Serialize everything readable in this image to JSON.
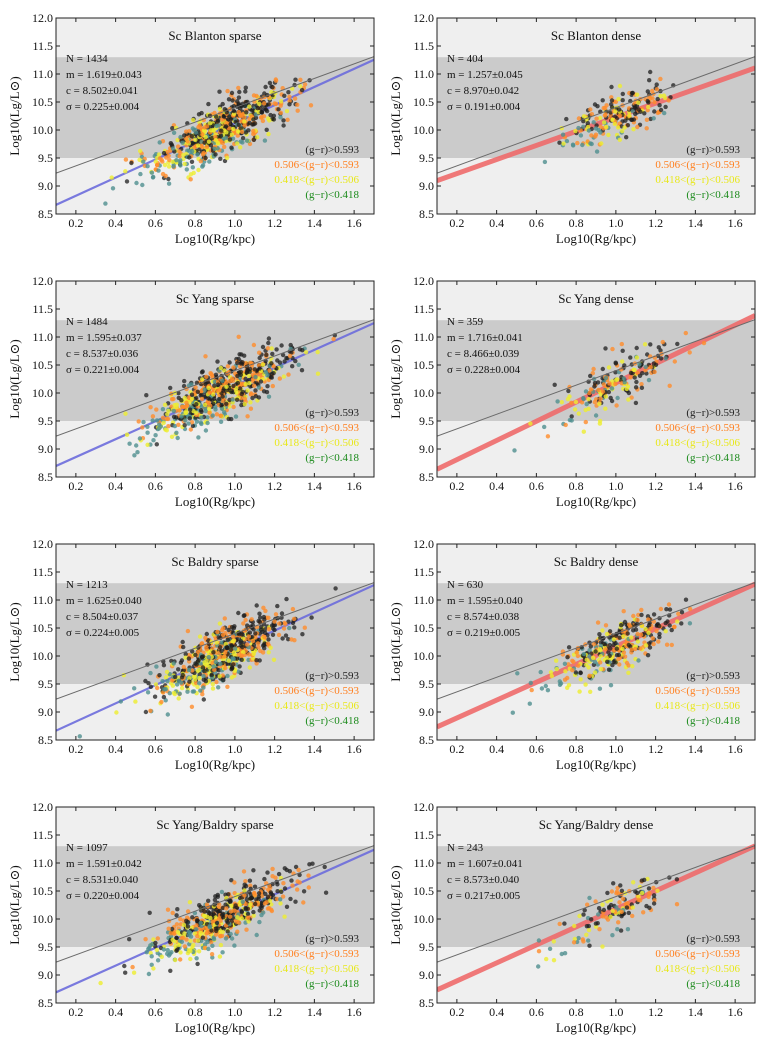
{
  "figure": {
    "xlabel": "Log10(Rg/kpc)",
    "ylabel": "Log10(Lg/L⊙)",
    "xlim": [
      0.1,
      1.7
    ],
    "ylim": [
      8.5,
      12.0
    ],
    "xticks": [
      "0.2",
      "0.4",
      "0.6",
      "0.8",
      "1.0",
      "1.2",
      "1.4",
      "1.6"
    ],
    "yticks": [
      "8.5",
      "9.0",
      "9.5",
      "10.0",
      "10.5",
      "11.0",
      "11.5",
      "12.0"
    ],
    "dark_band": [
      9.5,
      11.3
    ],
    "reference_line": {
      "m": 1.3,
      "c": 9.1
    },
    "legend": [
      {
        "label": "(g−r)>0.593",
        "color": "#222222"
      },
      {
        "label": "0.506<(g−r)<0.593",
        "color": "#ff7f1e"
      },
      {
        "label": "0.418<(g−r)<0.506",
        "color": "#e8e81a"
      },
      {
        "label": "(g−r)<0.418",
        "color": "#1a8a1a"
      }
    ],
    "colors": {
      "band_light": "#efefef",
      "band_dark": "#cbcbcb",
      "sparse_fit": "#6b6bdc",
      "dense_fit": "#ee6a6a",
      "red_dots": "#1e1e1e",
      "orange_dots": "#ff8c2a",
      "yellow_dots": "#eeee2e",
      "blue_dots": "#4f8f8f"
    }
  },
  "chart_data": [
    {
      "type": "scatter",
      "title": "Sc Blanton sparse",
      "sample": "sparse",
      "n_points": 1434,
      "fit": {
        "m": 1.619,
        "c": 8.502,
        "sigma": 0.225
      },
      "stats": [
        "N = 1434",
        "m = 1.619±0.043",
        "c = 8.502±0.041",
        "σ = 0.225±0.004"
      ]
    },
    {
      "type": "scatter",
      "title": "Sc Blanton dense",
      "sample": "dense",
      "n_points": 404,
      "fit": {
        "m": 1.257,
        "c": 8.97,
        "sigma": 0.191
      },
      "stats": [
        "N = 404",
        "m = 1.257±0.045",
        "c = 8.970±0.042",
        "σ = 0.191±0.004"
      ]
    },
    {
      "type": "scatter",
      "title": "Sc Yang sparse",
      "sample": "sparse",
      "n_points": 1484,
      "fit": {
        "m": 1.595,
        "c": 8.537,
        "sigma": 0.221
      },
      "stats": [
        "N = 1484",
        "m = 1.595±0.037",
        "c = 8.537±0.036",
        "σ = 0.221±0.004"
      ]
    },
    {
      "type": "scatter",
      "title": "Sc Yang dense",
      "sample": "dense",
      "n_points": 359,
      "fit": {
        "m": 1.716,
        "c": 8.466,
        "sigma": 0.228
      },
      "stats": [
        "N = 359",
        "m = 1.716±0.041",
        "c = 8.466±0.039",
        "σ = 0.228±0.004"
      ]
    },
    {
      "type": "scatter",
      "title": "Sc Baldry sparse",
      "sample": "sparse",
      "n_points": 1213,
      "fit": {
        "m": 1.625,
        "c": 8.504,
        "sigma": 0.224
      },
      "stats": [
        "N = 1213",
        "m = 1.625±0.040",
        "c = 8.504±0.037",
        "σ = 0.224±0.005"
      ]
    },
    {
      "type": "scatter",
      "title": "Sc Baldry dense",
      "sample": "dense",
      "n_points": 630,
      "fit": {
        "m": 1.595,
        "c": 8.574,
        "sigma": 0.219
      },
      "stats": [
        "N = 630",
        "m = 1.595±0.040",
        "c = 8.574±0.038",
        "σ = 0.219±0.005"
      ]
    },
    {
      "type": "scatter",
      "title": "Sc Yang/Baldry sparse",
      "sample": "sparse",
      "n_points": 1097,
      "fit": {
        "m": 1.591,
        "c": 8.531,
        "sigma": 0.22
      },
      "stats": [
        "N = 1097",
        "m = 1.591±0.042",
        "c = 8.531±0.040",
        "σ = 0.220±0.004"
      ]
    },
    {
      "type": "scatter",
      "title": "Sc Yang/Baldry dense",
      "sample": "dense",
      "n_points": 243,
      "fit": {
        "m": 1.607,
        "c": 8.573,
        "sigma": 0.217
      },
      "stats": [
        "N = 243",
        "m = 1.607±0.041",
        "c = 8.573±0.040",
        "σ = 0.217±0.005"
      ]
    }
  ]
}
